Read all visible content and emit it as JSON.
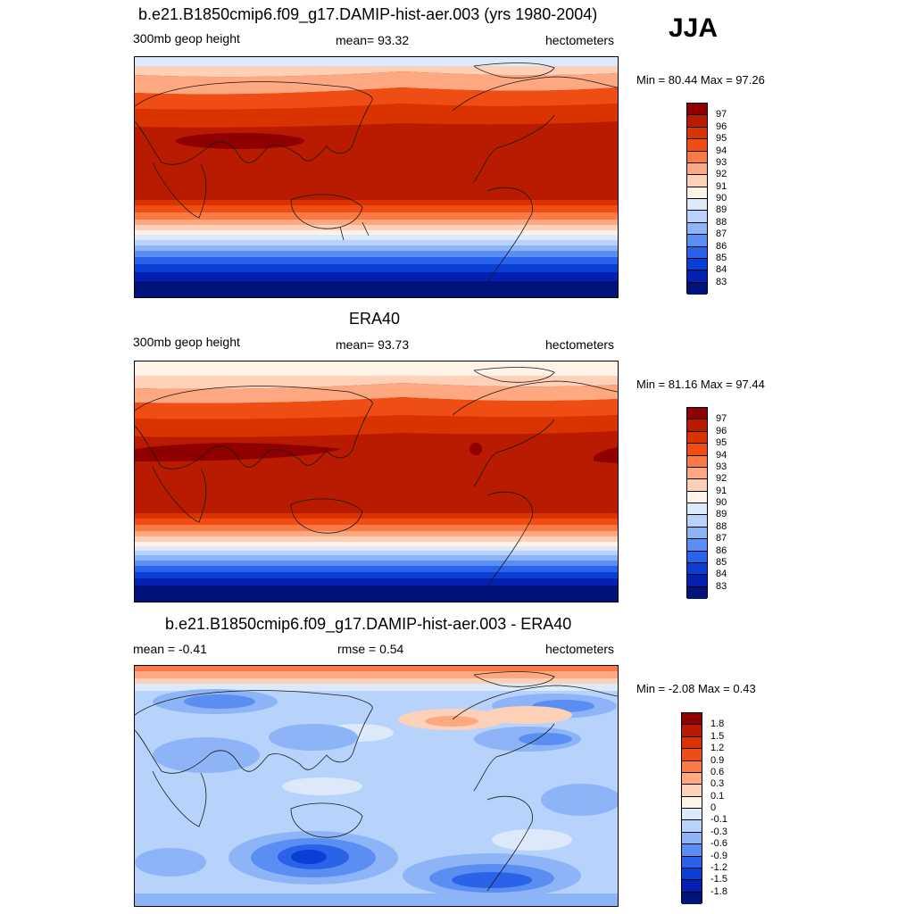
{
  "season_label": "JJA",
  "panels": [
    {
      "title": "b.e21.B1850cmip6.f09_g17.DAMIP-hist-aer.003 (yrs 1980-2004)",
      "left_label": "300mb geop height",
      "center_label": "mean=  93.32",
      "right_label": "hectometers",
      "minmax": "Min =  80.44 Max =  97.26"
    },
    {
      "title": "ERA40",
      "left_label": "300mb geop height",
      "center_label": "mean=  93.73",
      "right_label": "hectometers",
      "minmax": "Min =  81.16 Max =  97.44"
    },
    {
      "title": "b.e21.B1850cmip6.f09_g17.DAMIP-hist-aer.003 - ERA40",
      "left_label": "mean =  -0.41",
      "center_label": "rmse =   0.54",
      "right_label": "hectometers",
      "minmax": "Min =  -2.08 Max =   0.43"
    }
  ],
  "colorbars": {
    "absolute": {
      "labels": [
        "97",
        "96",
        "95",
        "94",
        "93",
        "92",
        "91",
        "90",
        "89",
        "88",
        "87",
        "86",
        "85",
        "84",
        "83"
      ],
      "colors": [
        "#8f0000",
        "#b81b00",
        "#d93300",
        "#f04d14",
        "#f97a45",
        "#fda880",
        "#fdd1b8",
        "#fff2e6",
        "#dbe9fb",
        "#b8d3fb",
        "#8db4f7",
        "#5b8ef2",
        "#2a62ea",
        "#0a3fd6",
        "#0420b0",
        "#00137a"
      ]
    },
    "difference": {
      "labels": [
        "1.8",
        "1.5",
        "1.2",
        "0.9",
        "0.6",
        "0.3",
        "0.1",
        "0",
        "-0.1",
        "-0.3",
        "-0.6",
        "-0.9",
        "-1.2",
        "-1.5",
        "-1.8"
      ],
      "colors": [
        "#8f0000",
        "#b81b00",
        "#d93300",
        "#f04d14",
        "#f97a45",
        "#fda880",
        "#fdd1b8",
        "#fff2e6",
        "#dbe9fb",
        "#b8d3fb",
        "#8db4f7",
        "#5b8ef2",
        "#2a62ea",
        "#0a3fd6",
        "#0420b0",
        "#00137a"
      ]
    }
  }
}
